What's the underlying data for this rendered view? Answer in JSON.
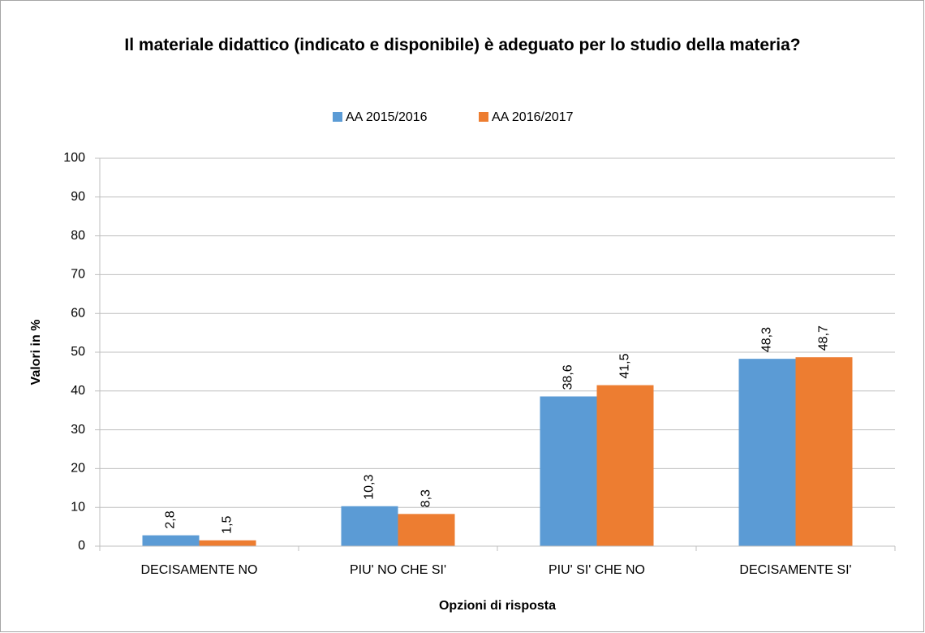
{
  "chart_data": {
    "type": "bar",
    "title": "Il materiale didattico (indicato e disponibile) è adeguato per lo studio della materia?",
    "xlabel": "Opzioni di risposta",
    "ylabel": "Valori in %",
    "categories": [
      "DECISAMENTE NO",
      "PIU' NO CHE SI'",
      "PIU' SI' CHE NO",
      "DECISAMENTE SI'"
    ],
    "series": [
      {
        "name": "AA 2015/2016",
        "color": "#5b9bd5",
        "values": [
          2.8,
          10.3,
          38.6,
          48.3
        ],
        "value_labels": [
          "2,8",
          "10,3",
          "38,6",
          "48,3"
        ]
      },
      {
        "name": "AA 2016/2017",
        "color": "#ed7d31",
        "values": [
          1.5,
          8.3,
          41.5,
          48.7
        ],
        "value_labels": [
          "1,5",
          "8,3",
          "41,5",
          "48,7"
        ]
      }
    ],
    "ylim": [
      0,
      100
    ],
    "yticks": [
      0,
      10,
      20,
      30,
      40,
      50,
      60,
      70,
      80,
      90,
      100
    ],
    "grid": true,
    "legend": "top"
  }
}
